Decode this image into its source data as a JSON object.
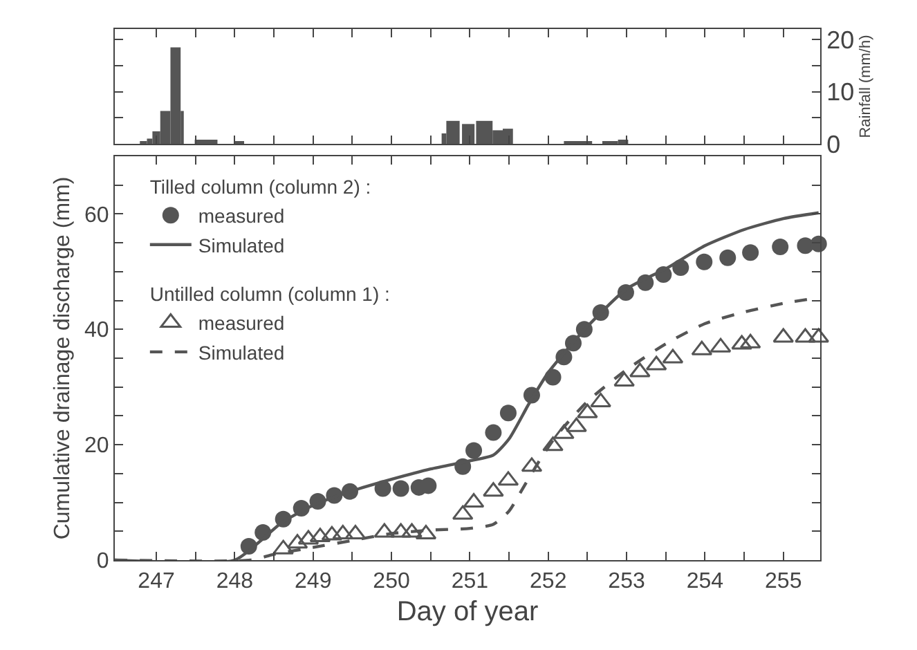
{
  "chart_data": [
    {
      "type": "histogram",
      "ylabel": "Rainfall (mm/h)",
      "xlim": [
        246.47,
        255.47
      ],
      "xticks": [
        {
          "value": 247,
          "label": null
        },
        {
          "value": 247.5,
          "label": null
        },
        {
          "value": 248,
          "label": null
        },
        {
          "value": 248.5,
          "label": null
        },
        {
          "value": 249,
          "label": null
        },
        {
          "value": 249.5,
          "label": null
        },
        {
          "value": 250,
          "label": null
        },
        {
          "value": 250.5,
          "label": null
        },
        {
          "value": 251,
          "label": null
        },
        {
          "value": 251.5,
          "label": null
        },
        {
          "value": 252,
          "label": null
        },
        {
          "value": 252.5,
          "label": null
        },
        {
          "value": 253,
          "label": null
        },
        {
          "value": 253.5,
          "label": null
        },
        {
          "value": 254,
          "label": null
        },
        {
          "value": 254.5,
          "label": null
        },
        {
          "value": 255,
          "label": null
        }
      ],
      "ylim": [
        0,
        22
      ],
      "yticks": [
        0,
        {
          "value": 5,
          "label": null
        },
        10,
        {
          "value": 15,
          "label": null
        },
        20
      ],
      "tick_labels": "y",
      "color": "#555555",
      "bins": [
        246.79,
        246.88,
        246.95,
        247.05,
        247.18,
        247.31,
        247.35,
        247.49,
        247.78,
        247.99,
        248.12,
        250.64,
        250.7,
        250.87,
        250.9,
        251.06,
        251.08,
        251.29,
        251.42,
        251.55,
        252.2,
        252.56,
        252.69,
        252.89,
        253.02
      ],
      "values": [
        0.5,
        1,
        2.4,
        6.3,
        18.5,
        6.3,
        0,
        0.8,
        0,
        0.5,
        0,
        2,
        4.4,
        0,
        3.8,
        0,
        4.4,
        2.6,
        2.9,
        0,
        0.5,
        0,
        0.5,
        0.8
      ]
    },
    {
      "type": "scatter",
      "xlabel": "Day of year",
      "ylabel": "Cumulative drainage discharge (mm)",
      "xlim": [
        246.47,
        255.47
      ],
      "xticks": [
        247,
        {
          "value": 247.5,
          "label": null
        },
        248,
        {
          "value": 248.5,
          "label": null
        },
        249,
        {
          "value": 249.5,
          "label": null
        },
        250,
        {
          "value": 250.5,
          "label": null
        },
        251,
        {
          "value": 251.5,
          "label": null
        },
        252,
        {
          "value": 252.5,
          "label": null
        },
        253,
        {
          "value": 253.5,
          "label": null
        },
        254,
        {
          "value": 254.5,
          "label": null
        },
        255
      ],
      "ylim": [
        0,
        70
      ],
      "yticks": [
        0,
        {
          "value": 5,
          "label": null
        },
        {
          "value": 10,
          "label": null
        },
        {
          "value": 15,
          "label": null
        },
        20,
        {
          "value": 25,
          "label": null
        },
        {
          "value": 30,
          "label": null
        },
        {
          "value": 35,
          "label": null
        },
        40,
        {
          "value": 45,
          "label": null
        },
        {
          "value": 50,
          "label": null
        },
        {
          "value": 55,
          "label": null
        },
        60,
        {
          "value": 65,
          "label": null
        }
      ],
      "legend": "top left",
      "annotations": [
        "Tilled column (column 2) :",
        "Untilled column (column 1) :"
      ],
      "series": [
        {
          "name": "measured",
          "type": "scatter",
          "marker": "circle",
          "color": "#555555",
          "x": [
            248.18,
            248.36,
            248.62,
            248.85,
            249.06,
            249.27,
            249.47,
            249.89,
            250.12,
            250.35,
            250.47,
            250.91,
            251.05,
            251.3,
            251.49,
            251.79,
            252.06,
            252.2,
            252.32,
            252.46,
            252.67,
            252.99,
            253.24,
            253.47,
            253.69,
            253.99,
            254.29,
            254.58,
            254.96,
            255.28,
            255.45
          ],
          "values": [
            2.4,
            4.8,
            7.1,
            9.0,
            10.2,
            11.2,
            11.9,
            12.4,
            12.4,
            12.6,
            12.9,
            16.2,
            19,
            22.1,
            25.5,
            28.6,
            31.7,
            35.2,
            37.6,
            40,
            42.9,
            46.4,
            48.1,
            49.5,
            50.7,
            51.7,
            52.4,
            53.3,
            54.3,
            54.5,
            54.8
          ]
        },
        {
          "name": "Simulated",
          "type": "line",
          "line_style": "solid",
          "color": "#555555",
          "x": [
            246.47,
            248.0,
            248.3,
            248.6,
            249.0,
            249.5,
            250.0,
            250.5,
            251.0,
            251.3,
            251.5,
            251.75,
            252.0,
            252.5,
            253.0,
            253.5,
            254.0,
            254.5,
            255.0,
            255.45
          ],
          "values": [
            0,
            0,
            3,
            6.5,
            9.5,
            12,
            14,
            15.8,
            17.2,
            18.2,
            21,
            27,
            32.5,
            40.5,
            47,
            50.5,
            54.5,
            57.3,
            59.2,
            60.2
          ]
        },
        {
          "name": "measured",
          "type": "scatter",
          "marker": "triangle",
          "color": "#555555",
          "x": [
            248.62,
            248.8,
            248.94,
            249.09,
            249.24,
            249.38,
            249.54,
            249.91,
            250.12,
            250.26,
            250.44,
            250.91,
            251.05,
            251.3,
            251.49,
            251.79,
            252.06,
            252.2,
            252.36,
            252.5,
            252.67,
            252.97,
            253.17,
            253.38,
            253.59,
            253.96,
            254.2,
            254.47,
            254.58,
            255.0,
            255.28,
            255.45
          ],
          "values": [
            1.9,
            2.9,
            3.6,
            4,
            4.3,
            4.5,
            4.5,
            4.8,
            4.8,
            4.8,
            4.5,
            7.9,
            10,
            11.9,
            13.8,
            16.2,
            19.8,
            21.9,
            23.1,
            25.5,
            27.4,
            31,
            32.6,
            33.8,
            35,
            36.4,
            36.9,
            37.4,
            37.6,
            38.6,
            38.6,
            38.6
          ]
        },
        {
          "name": "Simulated",
          "type": "line",
          "line_style": "dashed",
          "color": "#555555",
          "x": [
            246.47,
            248.2,
            248.5,
            249.0,
            249.5,
            250.0,
            250.5,
            251.0,
            251.3,
            251.5,
            251.7,
            251.9,
            252.1,
            252.5,
            253.0,
            253.5,
            254.0,
            254.5,
            255.0,
            255.45
          ],
          "values": [
            0,
            0,
            1,
            2.2,
            3.4,
            4.6,
            5.2,
            5.5,
            6.2,
            8.5,
            13,
            17.5,
            21.5,
            27.5,
            33,
            37.5,
            41,
            43,
            44.5,
            45.5
          ]
        }
      ]
    }
  ]
}
